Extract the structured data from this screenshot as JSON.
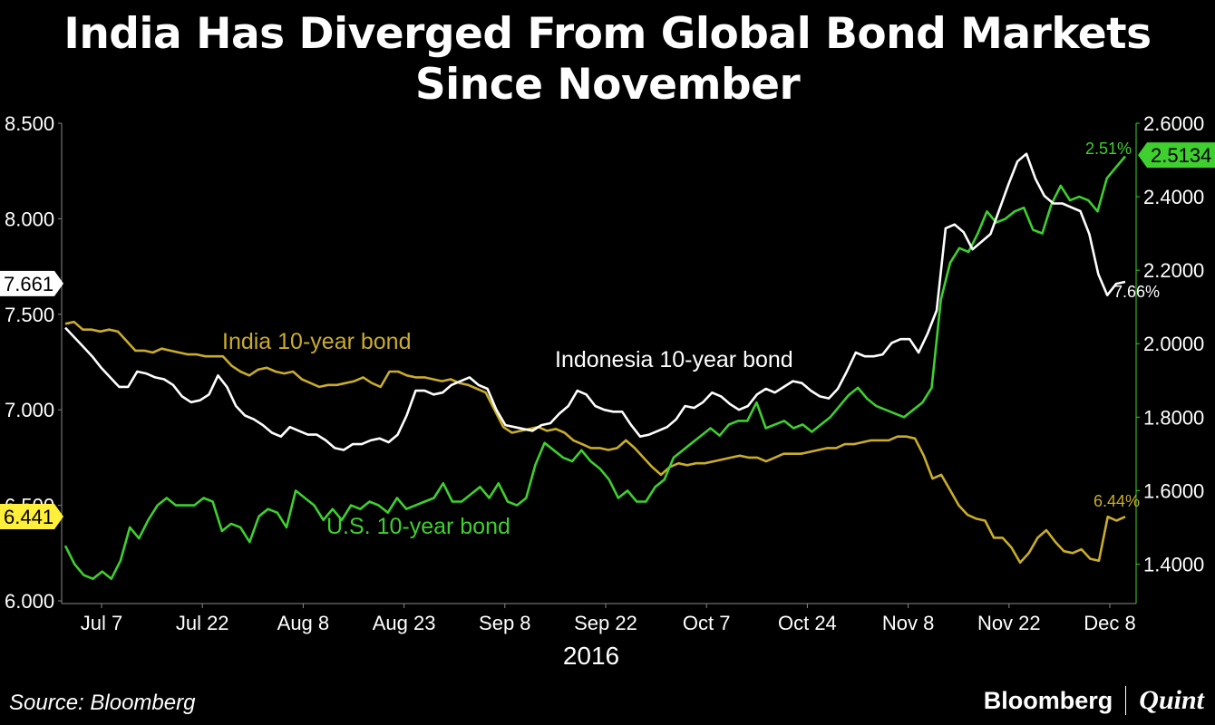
{
  "title_line1": "India Has Diverged From Global Bond Markets",
  "title_line2": "Since November",
  "source": "Source: Bloomberg",
  "brand": {
    "primary": "Bloomberg",
    "secondary": "Quint"
  },
  "colors": {
    "india": "#c9ac2c",
    "indonesia": "#ffffff",
    "us": "#3fcf2f",
    "background": "#000000"
  },
  "chart_data": {
    "type": "line",
    "xlabel": "2016",
    "x_ticks": [
      "Jul 7",
      "Jul 22",
      "Aug 8",
      "Aug 23",
      "Sep 8",
      "Sep 22",
      "Oct 7",
      "Oct 24",
      "Nov 8",
      "Nov 22",
      "Dec 8"
    ],
    "left_axis": {
      "ylim": [
        6.0,
        8.5
      ],
      "ticks": [
        "6.000",
        "6.500",
        "7.000",
        "7.500",
        "8.000",
        "8.500"
      ]
    },
    "right_axis": {
      "ylim": [
        1.3,
        2.6
      ],
      "ticks": [
        "1.4000",
        "1.6000",
        "1.8000",
        "2.0000",
        "2.2000",
        "2.4000",
        "2.6000"
      ]
    },
    "grid": false,
    "series": [
      {
        "name": "India 10-year bond",
        "axis": "left",
        "color": "#c9ac2c",
        "end_label": "6.44%",
        "axis_tag": "6.441",
        "values": [
          7.45,
          7.46,
          7.42,
          7.42,
          7.41,
          7.42,
          7.41,
          7.36,
          7.31,
          7.31,
          7.3,
          7.32,
          7.31,
          7.3,
          7.29,
          7.29,
          7.28,
          7.28,
          7.28,
          7.23,
          7.2,
          7.18,
          7.21,
          7.22,
          7.2,
          7.19,
          7.2,
          7.16,
          7.14,
          7.12,
          7.13,
          7.13,
          7.14,
          7.15,
          7.17,
          7.14,
          7.12,
          7.2,
          7.2,
          7.18,
          7.17,
          7.17,
          7.16,
          7.15,
          7.16,
          7.14,
          7.13,
          7.11,
          7.09,
          7.0,
          6.91,
          6.88,
          6.89,
          6.9,
          6.91,
          6.89,
          6.9,
          6.88,
          6.84,
          6.82,
          6.8,
          6.8,
          6.79,
          6.8,
          6.84,
          6.8,
          6.75,
          6.7,
          6.66,
          6.7,
          6.72,
          6.71,
          6.72,
          6.72,
          6.73,
          6.74,
          6.75,
          6.76,
          6.75,
          6.75,
          6.73,
          6.75,
          6.77,
          6.77,
          6.77,
          6.78,
          6.79,
          6.8,
          6.8,
          6.82,
          6.82,
          6.83,
          6.84,
          6.84,
          6.84,
          6.86,
          6.86,
          6.85,
          6.76,
          6.64,
          6.66,
          6.58,
          6.5,
          6.45,
          6.43,
          6.42,
          6.33,
          6.33,
          6.28,
          6.2,
          6.25,
          6.33,
          6.37,
          6.31,
          6.26,
          6.25,
          6.27,
          6.22,
          6.21,
          6.44,
          6.42,
          6.44
        ]
      },
      {
        "name": "Indonesia 10-year bond",
        "axis": "left",
        "color": "#ffffff",
        "end_label": "7.66%",
        "axis_tag": "7.661",
        "values": [
          7.43,
          7.38,
          7.33,
          7.28,
          7.22,
          7.17,
          7.12,
          7.12,
          7.2,
          7.19,
          7.17,
          7.16,
          7.13,
          7.07,
          7.04,
          7.05,
          7.08,
          7.18,
          7.12,
          7.02,
          6.97,
          6.95,
          6.92,
          6.88,
          6.86,
          6.91,
          6.89,
          6.87,
          6.87,
          6.84,
          6.8,
          6.79,
          6.82,
          6.82,
          6.84,
          6.85,
          6.83,
          6.87,
          6.97,
          7.1,
          7.1,
          7.08,
          7.09,
          7.13,
          7.15,
          7.17,
          7.13,
          7.11,
          7.0,
          6.92,
          6.91,
          6.9,
          6.89,
          6.92,
          6.93,
          6.98,
          7.02,
          7.1,
          7.08,
          7.02,
          7.0,
          6.99,
          6.99,
          6.92,
          6.86,
          6.87,
          6.89,
          6.91,
          6.95,
          7.02,
          7.01,
          7.04,
          7.09,
          7.07,
          7.03,
          7.0,
          7.02,
          7.08,
          7.11,
          7.09,
          7.12,
          7.15,
          7.14,
          7.1,
          7.07,
          7.06,
          7.11,
          7.2,
          7.3,
          7.28,
          7.28,
          7.29,
          7.35,
          7.37,
          7.37,
          7.3,
          7.4,
          7.52,
          7.95,
          7.97,
          7.93,
          7.84,
          7.88,
          7.92,
          8.05,
          8.18,
          8.3,
          8.34,
          8.21,
          8.12,
          8.08,
          8.08,
          8.06,
          8.04,
          7.92,
          7.71,
          7.6,
          7.66,
          7.67
        ]
      },
      {
        "name": "U.S. 10-year bond",
        "axis": "right",
        "color": "#3fcf2f",
        "end_label": "2.51%",
        "axis_tag": "2.5134",
        "values": [
          1.45,
          1.4,
          1.37,
          1.36,
          1.38,
          1.36,
          1.41,
          1.5,
          1.47,
          1.52,
          1.56,
          1.58,
          1.56,
          1.56,
          1.56,
          1.58,
          1.57,
          1.49,
          1.51,
          1.5,
          1.46,
          1.53,
          1.55,
          1.54,
          1.5,
          1.6,
          1.58,
          1.56,
          1.52,
          1.55,
          1.52,
          1.56,
          1.55,
          1.57,
          1.56,
          1.54,
          1.58,
          1.55,
          1.56,
          1.57,
          1.58,
          1.62,
          1.57,
          1.57,
          1.59,
          1.61,
          1.58,
          1.62,
          1.57,
          1.56,
          1.58,
          1.67,
          1.73,
          1.71,
          1.69,
          1.68,
          1.71,
          1.68,
          1.66,
          1.63,
          1.58,
          1.6,
          1.57,
          1.57,
          1.61,
          1.63,
          1.69,
          1.71,
          1.73,
          1.75,
          1.77,
          1.75,
          1.78,
          1.79,
          1.79,
          1.84,
          1.77,
          1.78,
          1.79,
          1.77,
          1.78,
          1.76,
          1.78,
          1.8,
          1.83,
          1.86,
          1.88,
          1.85,
          1.83,
          1.82,
          1.81,
          1.8,
          1.82,
          1.84,
          1.88,
          2.12,
          2.22,
          2.26,
          2.25,
          2.3,
          2.36,
          2.33,
          2.34,
          2.36,
          2.37,
          2.31,
          2.3,
          2.38,
          2.43,
          2.39,
          2.4,
          2.39,
          2.36,
          2.45,
          2.48,
          2.51
        ]
      }
    ],
    "annotations": [
      {
        "text": "India 10-year bond",
        "series": "India 10-year bond"
      },
      {
        "text": "Indonesia 10-year bond",
        "series": "Indonesia 10-year bond"
      },
      {
        "text": "U.S. 10-year bond",
        "series": "U.S. 10-year bond"
      }
    ]
  }
}
